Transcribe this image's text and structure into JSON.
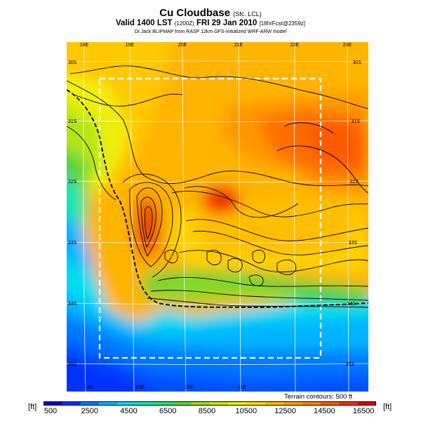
{
  "title": {
    "main": "Cu Cloudbase",
    "main_suffix": "(Sfc. LCL)",
    "valid_prefix": "Valid 1400 LST",
    "valid_code": "(1200Z)",
    "valid_date": "FRI 29 Jan 2010",
    "valid_suffix": "[18hrFcst@2359z]",
    "credit": "Dr.Jack BLIPMAP from RASP 12km GFS-initialized WRF-ARW model"
  },
  "map": {
    "lon_labels_top": [
      "18E",
      "19E",
      "20E",
      "21E",
      "22E",
      "23E"
    ],
    "lon_labels_bottom": [
      "18E",
      "19E",
      "20E",
      "21E"
    ],
    "lat_labels_left": [
      "30S",
      "31S",
      "32S",
      "33S",
      "34S",
      "35S"
    ],
    "lat_labels_right": [
      "30S",
      "31S",
      "32S",
      "33S",
      "34S",
      "35S"
    ],
    "terrain_note": "Terrain contours: 500 ft",
    "colors": {
      "grid_lines": "#ffffff",
      "inner_box": "#ffffff",
      "contours": "#000000",
      "coastline": "#000000"
    }
  },
  "colorbar": {
    "unit_left": "[ft]",
    "unit_right": "[ft]",
    "tick_labels": [
      "500",
      "2500",
      "4500",
      "6500",
      "8500",
      "10500",
      "12500",
      "14500",
      "16500"
    ],
    "min": 500,
    "max": 17500,
    "colors": [
      "#0a00c8",
      "#0032ff",
      "#0078ff",
      "#00b4ff",
      "#00dcf0",
      "#14e6b4",
      "#32dc78",
      "#5ad23c",
      "#96dc1e",
      "#c8e614",
      "#f0f00a",
      "#ffdc00",
      "#ffbe00",
      "#ffa000",
      "#ff8200",
      "#ff5a00",
      "#f53200",
      "#dc0000"
    ]
  }
}
